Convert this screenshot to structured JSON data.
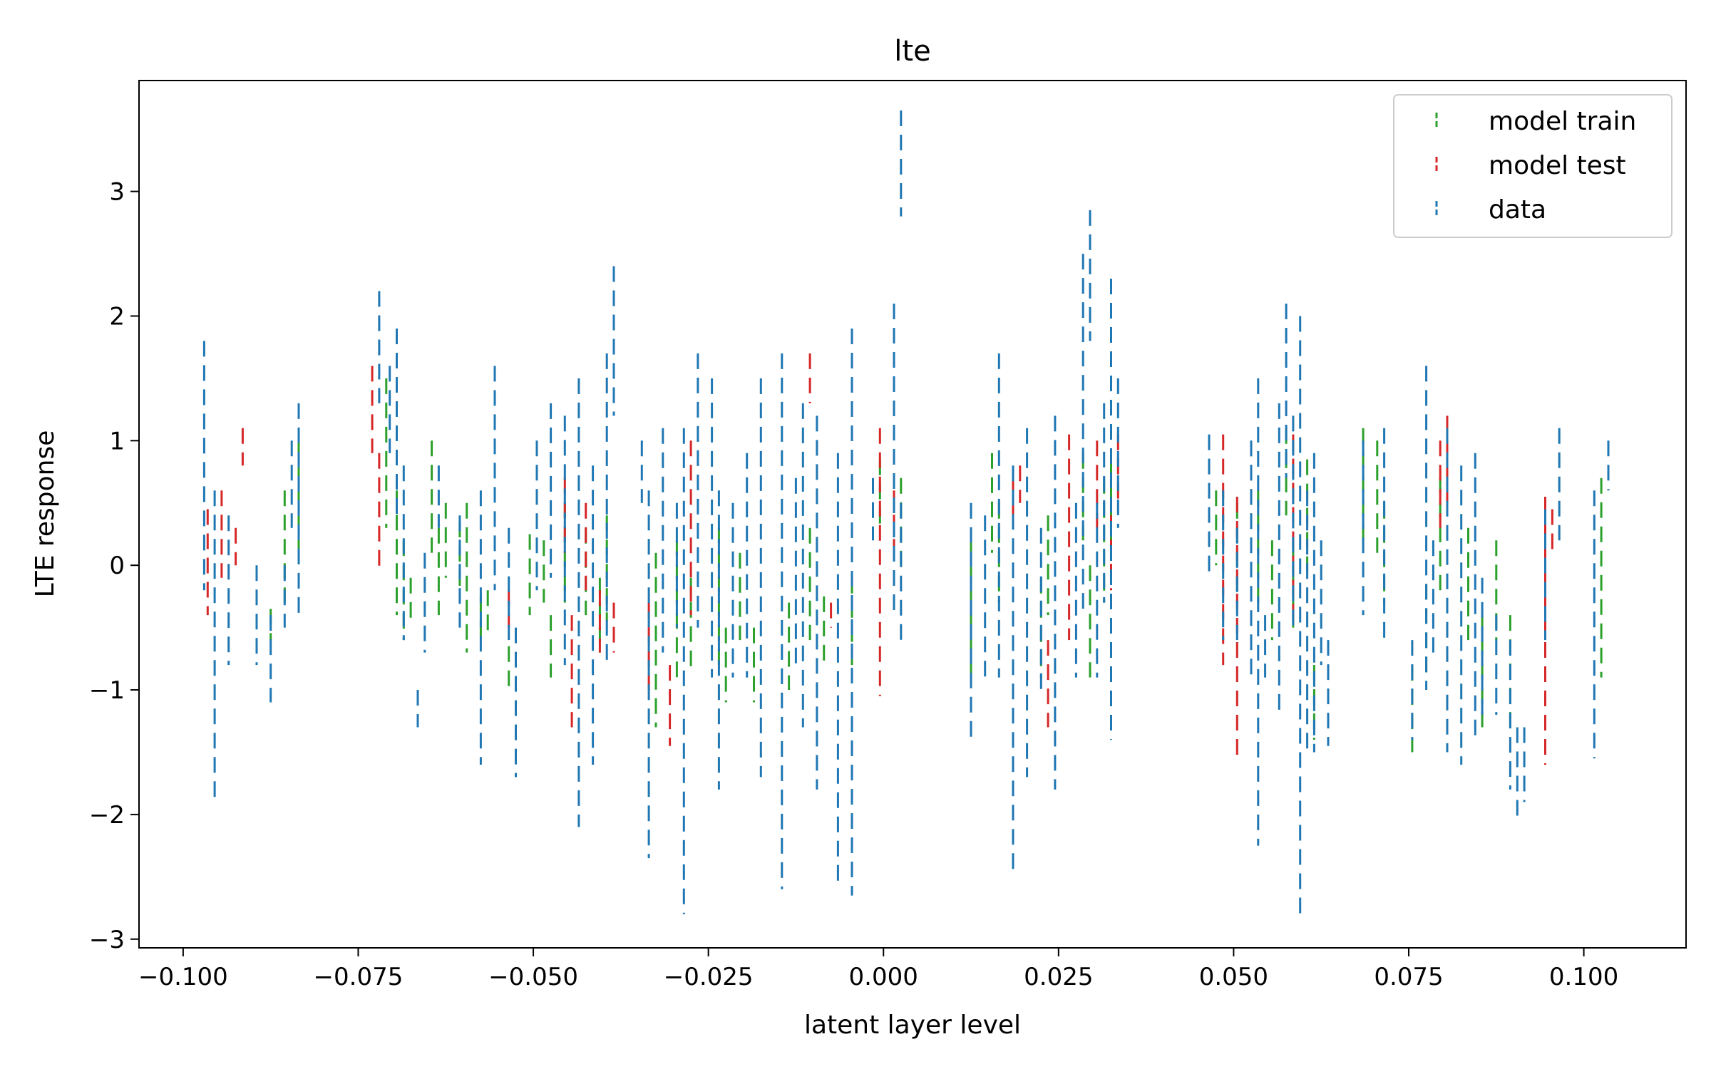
{
  "chart_data": {
    "type": "line",
    "title": "lte",
    "xlabel": "latent layer level",
    "ylabel": "LTE response",
    "xlim": [
      -0.1063,
      0.1146
    ],
    "ylim": [
      -3.07,
      3.89
    ],
    "xticks": [
      -0.1,
      -0.075,
      -0.05,
      -0.025,
      0.0,
      0.025,
      0.05,
      0.075,
      0.1
    ],
    "xtick_labels": [
      "−0.100",
      "−0.075",
      "−0.050",
      "−0.025",
      "0.000",
      "0.025",
      "0.050",
      "0.075",
      "0.100"
    ],
    "yticks": [
      -3,
      -2,
      -1,
      0,
      1,
      2,
      3
    ],
    "ytick_labels": [
      "−3",
      "−2",
      "−1",
      "0",
      "1",
      "2",
      "3"
    ],
    "grid": false,
    "legend_position": "top-right",
    "line_style": "dashed-vertical",
    "series": [
      {
        "name": "model train",
        "color": "#2ca02c",
        "x": [
          -0.0875,
          -0.0855,
          -0.0835,
          -0.071,
          -0.0695,
          -0.0685,
          -0.0675,
          -0.0645,
          -0.0635,
          -0.0625,
          -0.0605,
          -0.0595,
          -0.0575,
          -0.0565,
          -0.0535,
          -0.0505,
          -0.0485,
          -0.0475,
          -0.0455,
          -0.0425,
          -0.0405,
          -0.0395,
          -0.0325,
          -0.0295,
          -0.0275,
          -0.0235,
          -0.0225,
          -0.0205,
          -0.0185,
          -0.0135,
          -0.0105,
          -0.0085,
          -0.0045,
          -0.0005,
          0.0025,
          0.0125,
          0.0155,
          0.0165,
          0.0225,
          0.0235,
          0.0285,
          0.0295,
          0.0315,
          0.0325,
          0.0475,
          0.0505,
          0.0525,
          0.0535,
          0.0555,
          0.0575,
          0.0585,
          0.0605,
          0.0615,
          0.0685,
          0.0705,
          0.0715,
          0.0755,
          0.0775,
          0.0795,
          0.0835,
          0.0855,
          0.0875,
          0.0895,
          0.1025
        ],
        "y_top": [
          -0.35,
          0.6,
          1.0,
          1.5,
          0.6,
          0.2,
          -0.1,
          1.0,
          0.3,
          0.5,
          0.35,
          0.5,
          -0.25,
          -0.2,
          -0.65,
          0.25,
          0.2,
          -0.4,
          0.5,
          0.3,
          -0.1,
          0.4,
          0.1,
          0.2,
          -0.1,
          0.3,
          -0.5,
          0.1,
          -0.5,
          -0.3,
          0.3,
          -0.25,
          -0.1,
          0.85,
          0.7,
          0.2,
          0.9,
          0.5,
          -0.1,
          0.4,
          0.9,
          0.0,
          0.7,
          0.85,
          0.6,
          0.5,
          1.0,
          0.6,
          0.2,
          1.1,
          0.2,
          0.85,
          -0.8,
          1.1,
          1.0,
          0.5,
          -0.8,
          -0.15,
          0.7,
          0.3,
          -0.4,
          0.2,
          -0.4,
          0.7
        ],
        "y_bottom": [
          -0.6,
          -0.3,
          0.1,
          0.3,
          -0.4,
          -0.6,
          -0.45,
          0.1,
          -0.4,
          -0.1,
          -0.2,
          -0.7,
          -0.6,
          -0.55,
          -1.0,
          -0.4,
          -0.3,
          -0.9,
          -0.3,
          -0.4,
          -0.7,
          -0.45,
          -1.3,
          -0.9,
          -0.85,
          -0.8,
          -1.1,
          -0.6,
          -1.1,
          -1.0,
          -0.6,
          -0.8,
          -0.8,
          0.3,
          0.0,
          -0.9,
          0.1,
          -0.3,
          -0.9,
          -0.4,
          0.2,
          -0.9,
          -0.3,
          0.2,
          0.0,
          -0.3,
          0.1,
          -0.3,
          -0.6,
          0.4,
          -0.5,
          -0.1,
          -1.4,
          0.2,
          0.1,
          -0.3,
          -1.5,
          -0.9,
          -0.2,
          -0.6,
          -1.3,
          -0.6,
          -1.3,
          -0.9
        ]
      },
      {
        "name": "model test",
        "color": "#d62728",
        "x": [
          -0.0965,
          -0.0945,
          -0.0925,
          -0.0915,
          -0.073,
          -0.072,
          -0.0535,
          -0.0455,
          -0.0445,
          -0.0425,
          -0.0405,
          -0.0385,
          -0.0335,
          -0.0305,
          -0.0275,
          -0.0105,
          -0.0075,
          -0.0005,
          0.0015,
          0.0185,
          0.0195,
          0.0235,
          0.0265,
          0.0305,
          0.0325,
          0.0335,
          0.0485,
          0.0505,
          0.0585,
          0.0795,
          0.0805,
          0.0945,
          0.0955
        ],
        "y_top": [
          0.45,
          0.6,
          0.3,
          1.1,
          1.6,
          0.9,
          -0.2,
          0.7,
          -0.4,
          0.5,
          -0.2,
          -0.3,
          -0.3,
          -0.8,
          1.0,
          1.7,
          -0.3,
          1.1,
          0.6,
          0.7,
          0.8,
          -0.6,
          1.05,
          1.0,
          0.4,
          1.05,
          1.05,
          0.55,
          1.05,
          1.0,
          1.2,
          0.55,
          0.45
        ],
        "y_bottom": [
          -0.4,
          -0.1,
          0.0,
          0.8,
          0.9,
          -0.05,
          -0.5,
          0.1,
          -1.3,
          -0.2,
          -0.7,
          -0.7,
          -1.0,
          -1.45,
          -0.4,
          1.3,
          -0.5,
          -1.05,
          0.1,
          0.4,
          0.5,
          -1.3,
          -0.6,
          0.3,
          -0.2,
          0.5,
          -0.8,
          -1.55,
          -0.5,
          0.3,
          0.5,
          -1.6,
          0.1
        ]
      },
      {
        "name": "data",
        "color": "#1f77b4",
        "x": [
          -0.097,
          -0.0955,
          -0.0935,
          -0.0895,
          -0.0875,
          -0.0855,
          -0.0845,
          -0.0835,
          -0.072,
          -0.0705,
          -0.0695,
          -0.0685,
          -0.0665,
          -0.0655,
          -0.0635,
          -0.0605,
          -0.0575,
          -0.0555,
          -0.0535,
          -0.0525,
          -0.0495,
          -0.0475,
          -0.0455,
          -0.0435,
          -0.0415,
          -0.0395,
          -0.0385,
          -0.0345,
          -0.0335,
          -0.0315,
          -0.0295,
          -0.0285,
          -0.0265,
          -0.0245,
          -0.0235,
          -0.0215,
          -0.0195,
          -0.0175,
          -0.0145,
          -0.0125,
          -0.0115,
          -0.0095,
          -0.0065,
          -0.0045,
          -0.0015,
          0.0015,
          0.0025,
          0.0025,
          0.0125,
          0.0145,
          0.0165,
          0.0185,
          0.0205,
          0.0225,
          0.0245,
          0.0275,
          0.0285,
          0.0295,
          0.0305,
          0.0315,
          0.0325,
          0.0335,
          0.0465,
          0.0485,
          0.0505,
          0.0525,
          0.0535,
          0.0545,
          0.0565,
          0.0575,
          0.0585,
          0.0595,
          0.0605,
          0.0615,
          0.0625,
          0.0635,
          0.0685,
          0.0715,
          0.0755,
          0.0775,
          0.0785,
          0.0805,
          0.0825,
          0.0845,
          0.0855,
          0.0875,
          0.0895,
          0.0905,
          0.0915,
          0.0945,
          0.0965,
          0.1015,
          0.1035
        ],
        "y_top": [
          1.8,
          0.6,
          0.4,
          0.0,
          -0.4,
          0.0,
          1.0,
          1.3,
          2.2,
          1.6,
          1.9,
          0.8,
          -1.0,
          0.1,
          0.8,
          0.4,
          0.6,
          1.6,
          0.3,
          -0.5,
          1.0,
          1.3,
          1.2,
          1.5,
          0.8,
          1.7,
          2.4,
          1.0,
          0.6,
          1.1,
          0.5,
          1.1,
          1.7,
          1.5,
          0.6,
          0.5,
          0.9,
          1.5,
          1.7,
          0.7,
          1.3,
          1.2,
          0.9,
          1.9,
          0.7,
          2.1,
          0.5,
          3.65,
          0.5,
          0.4,
          1.7,
          0.8,
          1.1,
          0.3,
          1.2,
          0.5,
          2.5,
          2.85,
          0.5,
          1.3,
          2.3,
          1.5,
          1.05,
          0.6,
          0.3,
          1.0,
          1.5,
          -0.4,
          1.3,
          2.1,
          1.2,
          2.0,
          0.6,
          0.9,
          0.2,
          -0.6,
          1.0,
          1.1,
          -0.6,
          1.6,
          0.2,
          1.1,
          0.8,
          0.9,
          -0.1,
          -0.4,
          -0.6,
          -1.3,
          -1.3,
          0.45,
          1.1,
          0.6,
          1.0
        ],
        "y_bottom": [
          -0.2,
          -1.9,
          -0.8,
          -0.8,
          -1.1,
          -0.5,
          0.3,
          -0.4,
          1.3,
          0.9,
          0.4,
          -0.6,
          -1.3,
          -0.7,
          0.3,
          -0.5,
          -1.6,
          -0.2,
          -0.6,
          -1.7,
          -0.2,
          -0.1,
          -0.8,
          -2.1,
          -1.6,
          -0.8,
          1.2,
          0.5,
          -2.35,
          -0.7,
          -0.5,
          -2.8,
          -0.5,
          -0.9,
          -1.8,
          -0.9,
          -0.9,
          -1.7,
          -2.6,
          -0.8,
          -1.3,
          -1.8,
          -2.6,
          -2.65,
          0.2,
          -0.4,
          -0.6,
          2.8,
          -1.4,
          -0.9,
          -0.9,
          -2.45,
          -1.7,
          -1.0,
          -1.8,
          -0.9,
          -0.4,
          1.8,
          -0.9,
          -0.3,
          -1.4,
          0.3,
          -0.1,
          -0.6,
          -0.6,
          -0.9,
          -2.25,
          -0.9,
          -1.2,
          0.7,
          -0.5,
          -2.8,
          -1.5,
          -1.5,
          -0.8,
          -1.45,
          -0.4,
          -0.6,
          -1.4,
          -1.0,
          -0.7,
          -1.5,
          -1.6,
          -1.4,
          -1.2,
          -1.2,
          -1.8,
          -2.05,
          -1.9,
          -0.6,
          0.2,
          -1.55,
          0.6
        ]
      }
    ]
  }
}
